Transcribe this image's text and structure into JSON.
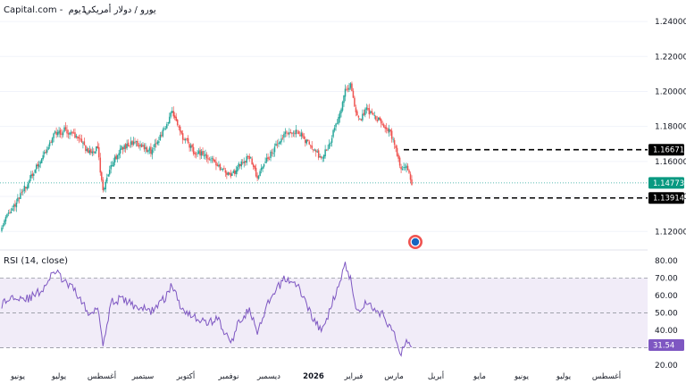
{
  "header": {
    "brand": "Capital.com",
    "separator": " - ",
    "instrument": "يورو / دولار أمريكي",
    "timeframe": "1يوم"
  },
  "colors": {
    "up": "#26a69a",
    "down": "#ef5350",
    "rsi_line": "#7e57c2",
    "rsi_band": "#ede7f6",
    "price_line": "#26a69a",
    "level_line": "#000000",
    "level_badge": "#000000",
    "price_badge": "#089981",
    "rsi_badge": "#7e57c2"
  },
  "chart_data": [
    {
      "type": "candlestick",
      "price_axis_ticks": [
        1.12,
        1.14,
        1.16,
        1.18,
        1.2,
        1.22,
        1.24
      ],
      "ylim": [
        1.1135,
        1.2482
      ],
      "x_axis_months": [
        "يونيو",
        "يوليو",
        "أغسطس",
        "سبتمبر",
        "أكتوبر",
        "نوفمبر",
        "ديسمبر",
        "2026",
        "فبراير",
        "مارس",
        "أبريل",
        "مايو",
        "يونيو",
        "يوليو",
        "أغسطس"
      ],
      "current_price": "1.14773",
      "levels": [
        {
          "label": "1.16671",
          "value": 1.16671
        },
        {
          "label": "1.13914",
          "value": 1.13914
        }
      ],
      "close_path": [
        {
          "i": 0,
          "v": 1.124
        },
        {
          "i": 10,
          "v": 1.136
        },
        {
          "i": 20,
          "v": 1.148
        },
        {
          "i": 30,
          "v": 1.162
        },
        {
          "i": 40,
          "v": 1.176
        },
        {
          "i": 48,
          "v": 1.178
        },
        {
          "i": 56,
          "v": 1.174
        },
        {
          "i": 66,
          "v": 1.165
        },
        {
          "i": 72,
          "v": 1.168
        },
        {
          "i": 76,
          "v": 1.142
        },
        {
          "i": 82,
          "v": 1.158
        },
        {
          "i": 90,
          "v": 1.168
        },
        {
          "i": 100,
          "v": 1.171
        },
        {
          "i": 112,
          "v": 1.166
        },
        {
          "i": 122,
          "v": 1.178
        },
        {
          "i": 128,
          "v": 1.189
        },
        {
          "i": 134,
          "v": 1.176
        },
        {
          "i": 144,
          "v": 1.166
        },
        {
          "i": 154,
          "v": 1.163
        },
        {
          "i": 162,
          "v": 1.158
        },
        {
          "i": 172,
          "v": 1.151
        },
        {
          "i": 178,
          "v": 1.158
        },
        {
          "i": 186,
          "v": 1.163
        },
        {
          "i": 192,
          "v": 1.151
        },
        {
          "i": 200,
          "v": 1.162
        },
        {
          "i": 212,
          "v": 1.175
        },
        {
          "i": 222,
          "v": 1.178
        },
        {
          "i": 232,
          "v": 1.168
        },
        {
          "i": 240,
          "v": 1.162
        },
        {
          "i": 246,
          "v": 1.17
        },
        {
          "i": 252,
          "v": 1.183
        },
        {
          "i": 258,
          "v": 1.2
        },
        {
          "i": 262,
          "v": 1.204
        },
        {
          "i": 266,
          "v": 1.188
        },
        {
          "i": 270,
          "v": 1.184
        },
        {
          "i": 274,
          "v": 1.19
        },
        {
          "i": 280,
          "v": 1.185
        },
        {
          "i": 286,
          "v": 1.182
        },
        {
          "i": 292,
          "v": 1.176
        },
        {
          "i": 296,
          "v": 1.168
        },
        {
          "i": 300,
          "v": 1.155
        },
        {
          "i": 304,
          "v": 1.158
        },
        {
          "i": 308,
          "v": 1.146
        }
      ],
      "rsi": {
        "title": "RSI (14, close)",
        "ticks": [
          20,
          30,
          40,
          50,
          60,
          70,
          80
        ],
        "ylim": [
          18,
          84
        ],
        "bands": [
          30,
          50,
          70
        ],
        "current": "31.54",
        "path": [
          {
            "i": 0,
            "v": 55
          },
          {
            "i": 10,
            "v": 60
          },
          {
            "i": 20,
            "v": 58
          },
          {
            "i": 30,
            "v": 63
          },
          {
            "i": 40,
            "v": 74
          },
          {
            "i": 48,
            "v": 67
          },
          {
            "i": 56,
            "v": 62
          },
          {
            "i": 66,
            "v": 48
          },
          {
            "i": 72,
            "v": 55
          },
          {
            "i": 76,
            "v": 32
          },
          {
            "i": 82,
            "v": 56
          },
          {
            "i": 90,
            "v": 58
          },
          {
            "i": 100,
            "v": 54
          },
          {
            "i": 112,
            "v": 51
          },
          {
            "i": 122,
            "v": 58
          },
          {
            "i": 128,
            "v": 66
          },
          {
            "i": 134,
            "v": 54
          },
          {
            "i": 144,
            "v": 48
          },
          {
            "i": 154,
            "v": 44
          },
          {
            "i": 162,
            "v": 47
          },
          {
            "i": 172,
            "v": 32
          },
          {
            "i": 178,
            "v": 45
          },
          {
            "i": 186,
            "v": 52
          },
          {
            "i": 192,
            "v": 38
          },
          {
            "i": 200,
            "v": 55
          },
          {
            "i": 212,
            "v": 70
          },
          {
            "i": 222,
            "v": 66
          },
          {
            "i": 232,
            "v": 50
          },
          {
            "i": 240,
            "v": 39
          },
          {
            "i": 246,
            "v": 50
          },
          {
            "i": 252,
            "v": 65
          },
          {
            "i": 258,
            "v": 77
          },
          {
            "i": 262,
            "v": 70
          },
          {
            "i": 266,
            "v": 54
          },
          {
            "i": 270,
            "v": 51
          },
          {
            "i": 274,
            "v": 57
          },
          {
            "i": 280,
            "v": 52
          },
          {
            "i": 286,
            "v": 49
          },
          {
            "i": 292,
            "v": 42
          },
          {
            "i": 296,
            "v": 35
          },
          {
            "i": 300,
            "v": 27
          },
          {
            "i": 304,
            "v": 34
          },
          {
            "i": 308,
            "v": 31.5
          }
        ]
      }
    }
  ]
}
